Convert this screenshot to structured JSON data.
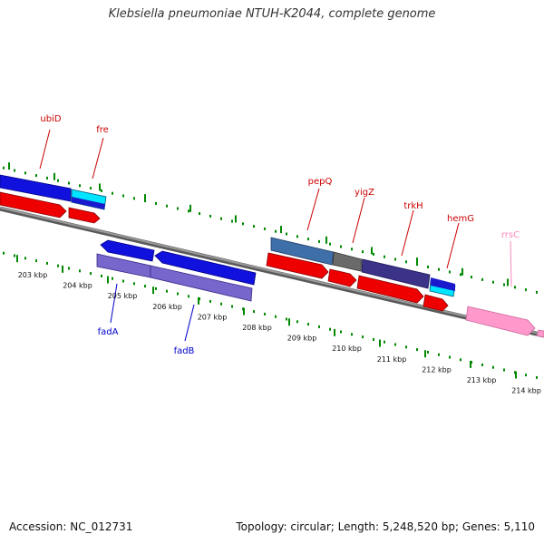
{
  "header": {
    "title": "Klebsiella pneumoniae NTUH-K2044, complete genome"
  },
  "footer": {
    "accession": "Accession: NC_012731",
    "topology": "Topology: circular; Length: 5,248,520 bp; Genes: 5,110"
  },
  "colors": {
    "backbone": "#808080",
    "tick": "#008800",
    "cds_forward": "#1515e6",
    "cds_reverse_lane": "#ff0000",
    "gene_label_top": "#cc0000",
    "gene_label_bottom": "#0000cc",
    "rrna": "#ff99cc",
    "rrna_label": "#ff88bb"
  },
  "scale": {
    "unit": "kbp",
    "labels": [
      "203 kbp",
      "204 kbp",
      "205 kbp",
      "206 kbp",
      "207 kbp",
      "208 kbp",
      "209 kbp",
      "210 kbp",
      "211 kbp",
      "212 kbp",
      "213 kbp",
      "214 kbp"
    ]
  },
  "genes_top": [
    {
      "name": "ubiD",
      "color": "#cc0000"
    },
    {
      "name": "fre",
      "color": "#cc0000"
    },
    {
      "name": "pepQ",
      "color": "#cc0000"
    },
    {
      "name": "yigZ",
      "color": "#cc0000"
    },
    {
      "name": "trkH",
      "color": "#cc0000"
    },
    {
      "name": "hemG",
      "color": "#cc0000"
    },
    {
      "name": "rrsC",
      "color": "#ff88bb"
    }
  ],
  "genes_bottom": [
    {
      "name": "fadA",
      "color": "#0000cc"
    },
    {
      "name": "fadB",
      "color": "#0000cc"
    }
  ]
}
